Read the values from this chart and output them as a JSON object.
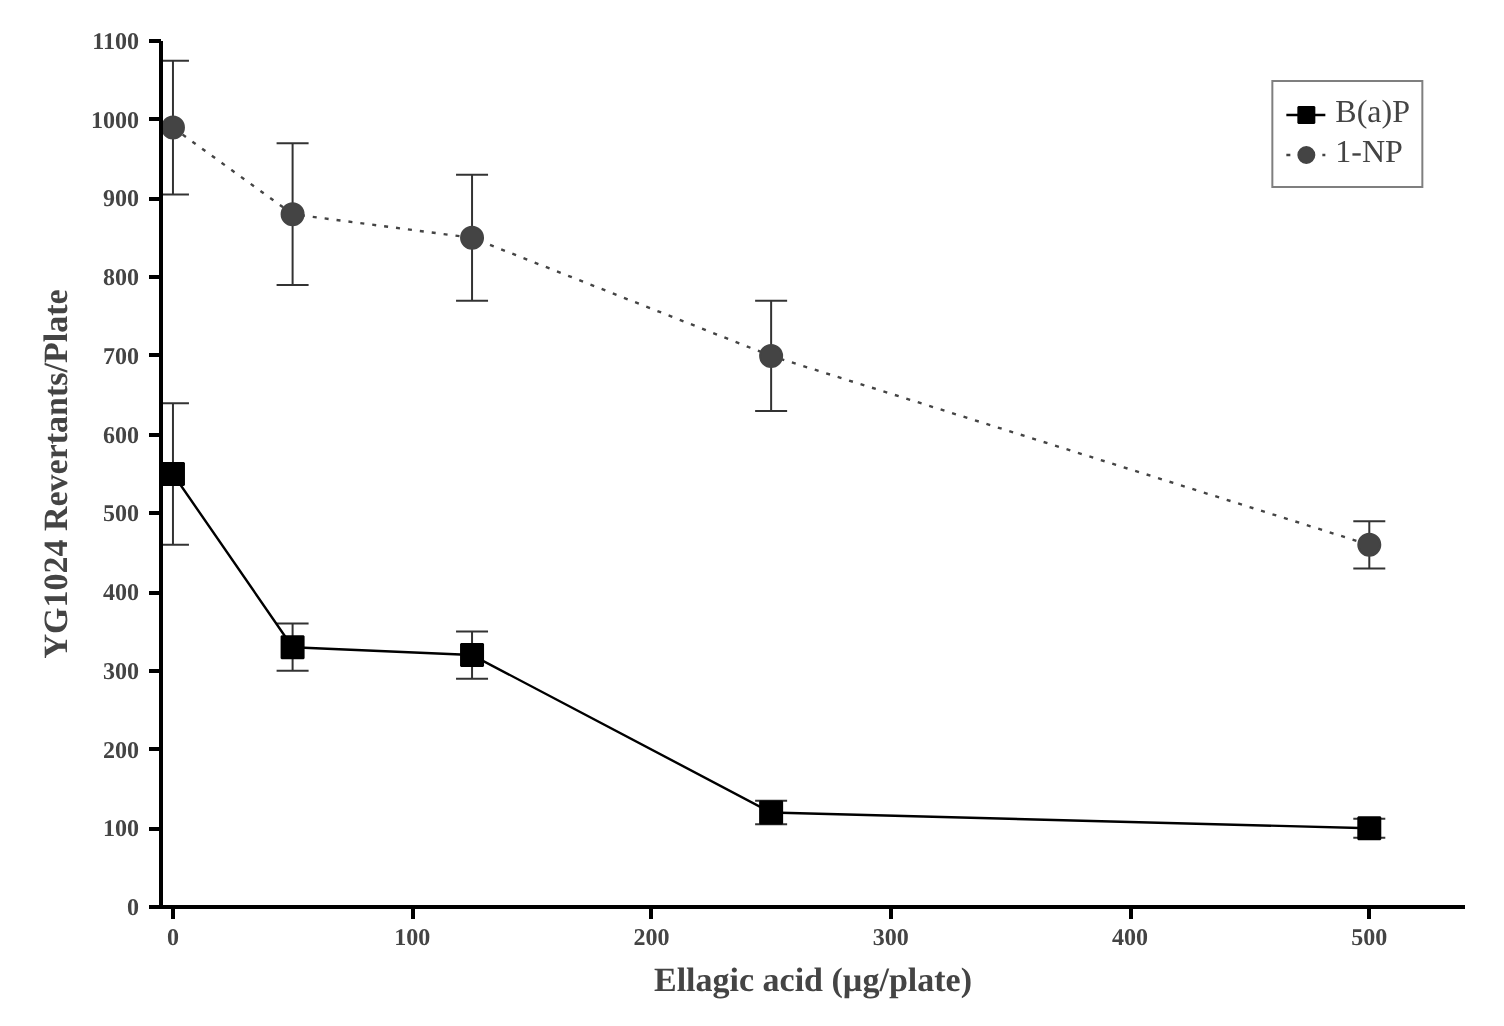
{
  "chart_data": {
    "type": "line",
    "xlabel": "Ellagic acid (µg/plate)",
    "ylabel": "YG1024 Revertants/Plate",
    "x": [
      0,
      50,
      125,
      250,
      500
    ],
    "series": [
      {
        "name": "B(a)P",
        "color": "#000000",
        "marker": "square",
        "line_style": "solid",
        "values": [
          550,
          330,
          320,
          120,
          100
        ],
        "errors": [
          90,
          30,
          30,
          15,
          12
        ]
      },
      {
        "name": "1-NP",
        "color": "#444444",
        "marker": "circle",
        "line_style": "dotted",
        "values": [
          990,
          880,
          850,
          700,
          460
        ],
        "errors": [
          85,
          90,
          80,
          70,
          30
        ]
      }
    ],
    "xlim": [
      -5,
      540
    ],
    "xticks": [
      0,
      100,
      200,
      300,
      400,
      500
    ],
    "ylim": [
      0,
      1100
    ],
    "yticks": [
      0,
      100,
      200,
      300,
      400,
      500,
      600,
      700,
      800,
      900,
      1000,
      1100
    ],
    "grid": false,
    "legend": "top right"
  }
}
